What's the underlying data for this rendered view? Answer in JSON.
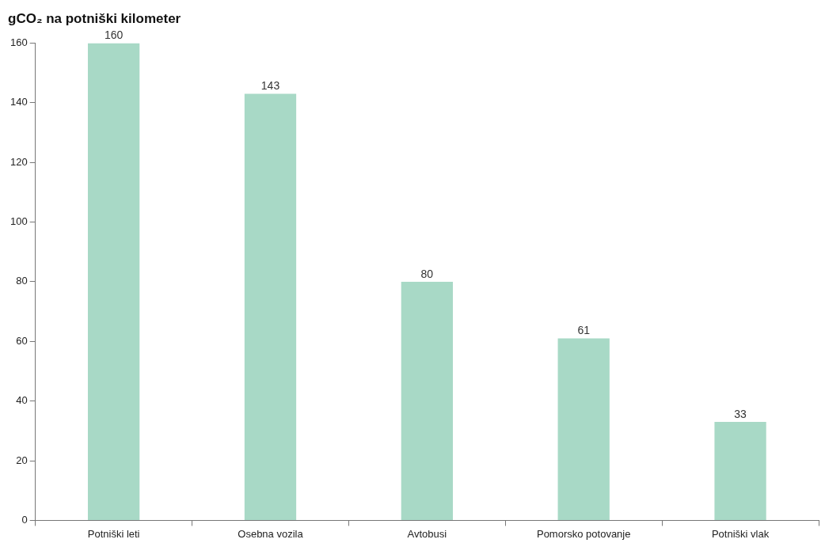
{
  "chart_data": {
    "type": "bar",
    "title": "gCO₂ na potniški kilometer",
    "categories": [
      "Potniški leti",
      "Osebna vozila",
      "Avtobusi",
      "Pomorsko potovanje",
      "Potniški vlak"
    ],
    "values": [
      160,
      143,
      80,
      61,
      33
    ],
    "color": "#a8d9c6",
    "ylim": [
      0,
      160
    ],
    "yticks": [
      0,
      20,
      40,
      60,
      80,
      100,
      120,
      140,
      160
    ],
    "grid": false,
    "legend": false,
    "data_labels": true
  }
}
